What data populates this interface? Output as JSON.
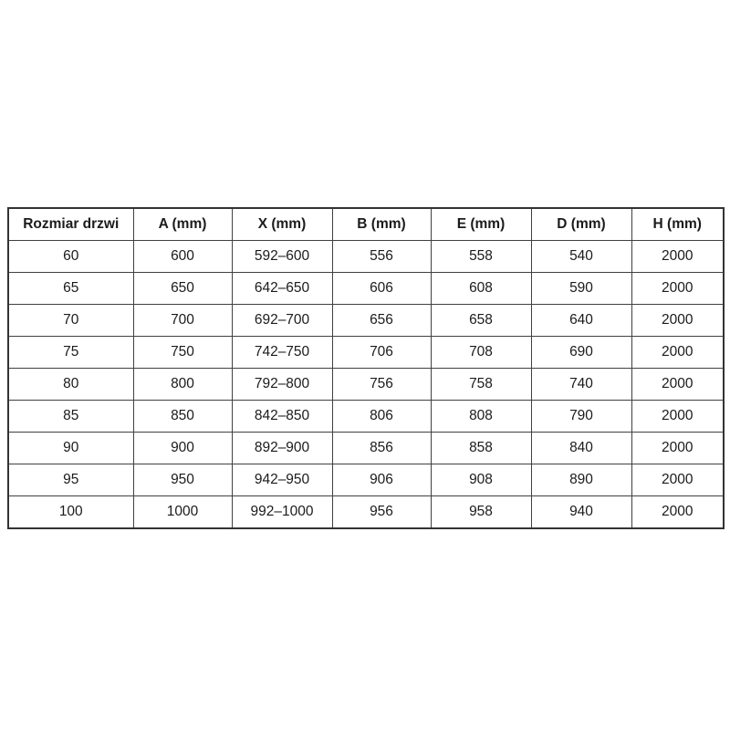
{
  "colors": {
    "background": "#ffffff",
    "border": "#404040",
    "text": "#1b1b1b"
  },
  "table": {
    "headers": [
      "Rozmiar drzwi",
      "A (mm)",
      "X (mm)",
      "B (mm)",
      "E (mm)",
      "D (mm)",
      "H (mm)"
    ],
    "rows": [
      [
        "60",
        "600",
        "592–600",
        "556",
        "558",
        "540",
        "2000"
      ],
      [
        "65",
        "650",
        "642–650",
        "606",
        "608",
        "590",
        "2000"
      ],
      [
        "70",
        "700",
        "692–700",
        "656",
        "658",
        "640",
        "2000"
      ],
      [
        "75",
        "750",
        "742–750",
        "706",
        "708",
        "690",
        "2000"
      ],
      [
        "80",
        "800",
        "792–800",
        "756",
        "758",
        "740",
        "2000"
      ],
      [
        "85",
        "850",
        "842–850",
        "806",
        "808",
        "790",
        "2000"
      ],
      [
        "90",
        "900",
        "892–900",
        "856",
        "858",
        "840",
        "2000"
      ],
      [
        "95",
        "950",
        "942–950",
        "906",
        "908",
        "890",
        "2000"
      ],
      [
        "100",
        "1000",
        "992–1000",
        "956",
        "958",
        "940",
        "2000"
      ]
    ]
  }
}
